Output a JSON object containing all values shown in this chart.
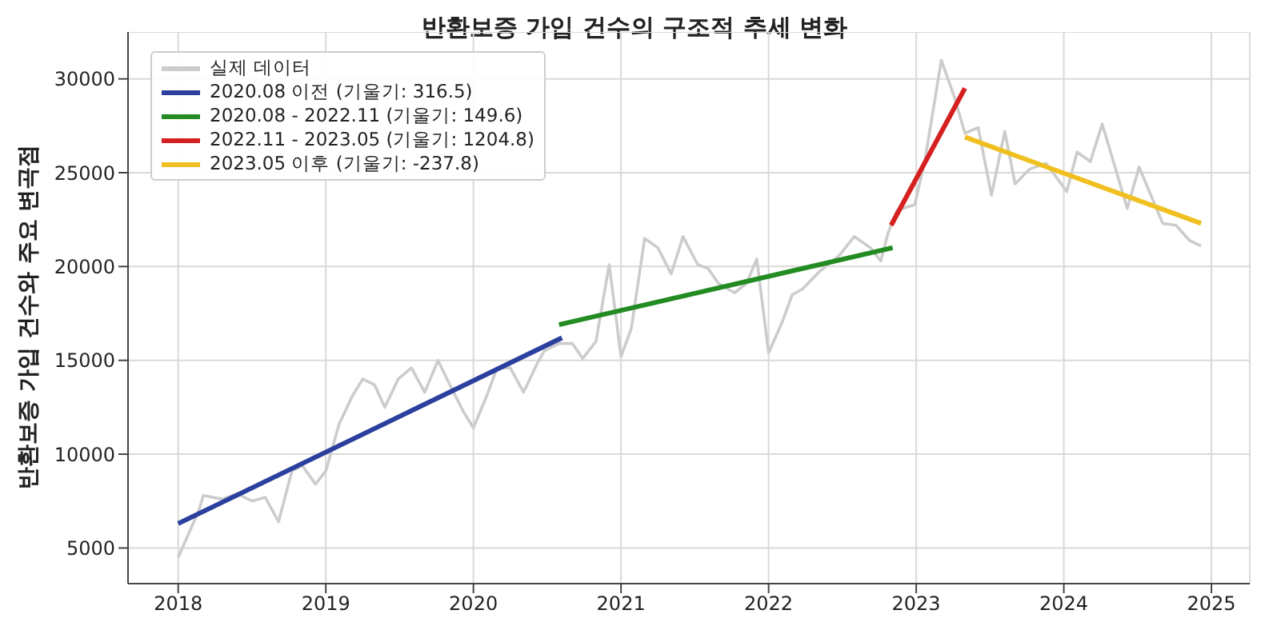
{
  "chart_data": {
    "type": "line",
    "title": "반환보증 가입 건수의 구조적 추세 변화",
    "ylabel": "반환보증 가입 건수와 주요 변곡점",
    "xlim": [
      2017.66,
      2025.26
    ],
    "xticks": [
      2018,
      2019,
      2020,
      2021,
      2022,
      2023,
      2024,
      2025
    ],
    "ylim": [
      3100,
      32500
    ],
    "yticks": [
      5000,
      10000,
      15000,
      20000,
      25000,
      30000
    ],
    "grid": true,
    "legend": "top left",
    "marker": "none",
    "line_style": "solid",
    "series": [
      {
        "name": "실제 데이터",
        "color": "#cccccc",
        "x": [
          2018.0,
          2018.14,
          2018.17,
          2018.3,
          2018.4,
          2018.5,
          2018.59,
          2018.68,
          2018.77,
          2018.84,
          2018.93,
          2019.0,
          2019.09,
          2019.18,
          2019.25,
          2019.33,
          2019.4,
          2019.49,
          2019.58,
          2019.67,
          2019.76,
          2019.84,
          2019.93,
          2020.0,
          2020.09,
          2020.16,
          2020.25,
          2020.34,
          2020.43,
          2020.48,
          2020.58,
          2020.67,
          2020.74,
          2020.83,
          2020.92,
          2021.0,
          2021.07,
          2021.16,
          2021.25,
          2021.34,
          2021.42,
          2021.52,
          2021.59,
          2021.66,
          2021.77,
          2021.85,
          2021.92,
          2022.0,
          2022.09,
          2022.16,
          2022.23,
          2022.34,
          2022.48,
          2022.58,
          2022.69,
          2022.76,
          2022.81,
          2022.87,
          2022.99,
          2023.06,
          2023.17,
          2023.26,
          2023.33,
          2023.42,
          2023.51,
          2023.6,
          2023.67,
          2023.77,
          2023.88,
          2024.02,
          2024.09,
          2024.18,
          2024.26,
          2024.43,
          2024.51,
          2024.67,
          2024.76,
          2024.85,
          2024.93
        ],
        "values": [
          4500,
          7000,
          7800,
          7600,
          7900,
          7500,
          7700,
          6400,
          9100,
          9400,
          8400,
          9100,
          11600,
          13100,
          14000,
          13700,
          12500,
          14000,
          14600,
          13300,
          15000,
          13700,
          12300,
          11400,
          13100,
          14600,
          14600,
          13300,
          14800,
          15500,
          15900,
          15900,
          15100,
          16000,
          20100,
          15200,
          16700,
          21500,
          21000,
          19600,
          21600,
          20100,
          19900,
          19100,
          18600,
          19100,
          20400,
          15400,
          17000,
          18500,
          18800,
          19700,
          20600,
          21600,
          21000,
          20300,
          21800,
          23000,
          23300,
          25700,
          31000,
          29000,
          27100,
          27400,
          23800,
          27200,
          24400,
          25200,
          25500,
          24000,
          26100,
          25600,
          27600,
          23100,
          25300,
          22300,
          22200,
          21400,
          21100
        ]
      },
      {
        "name": "2020.08 이전 (기울기: 316.5)",
        "color": "#2b3f9e",
        "x": [
          2018.0,
          2020.6
        ],
        "values": [
          6300,
          16200
        ]
      },
      {
        "name": "2020.08 - 2022.11 (기울기: 149.6)",
        "color": "#228b22",
        "x": [
          2020.58,
          2022.84
        ],
        "values": [
          16900,
          21000
        ]
      },
      {
        "name": "2022.11 - 2023.05 (기울기: 1204.8)",
        "color": "#d62020",
        "x": [
          2022.83,
          2023.33
        ],
        "values": [
          22200,
          29500
        ]
      },
      {
        "name": "2023.05 이후 (기울기: -237.8)",
        "color": "#f0c020",
        "x": [
          2023.33,
          2024.93
        ],
        "values": [
          26900,
          22300
        ]
      }
    ]
  }
}
